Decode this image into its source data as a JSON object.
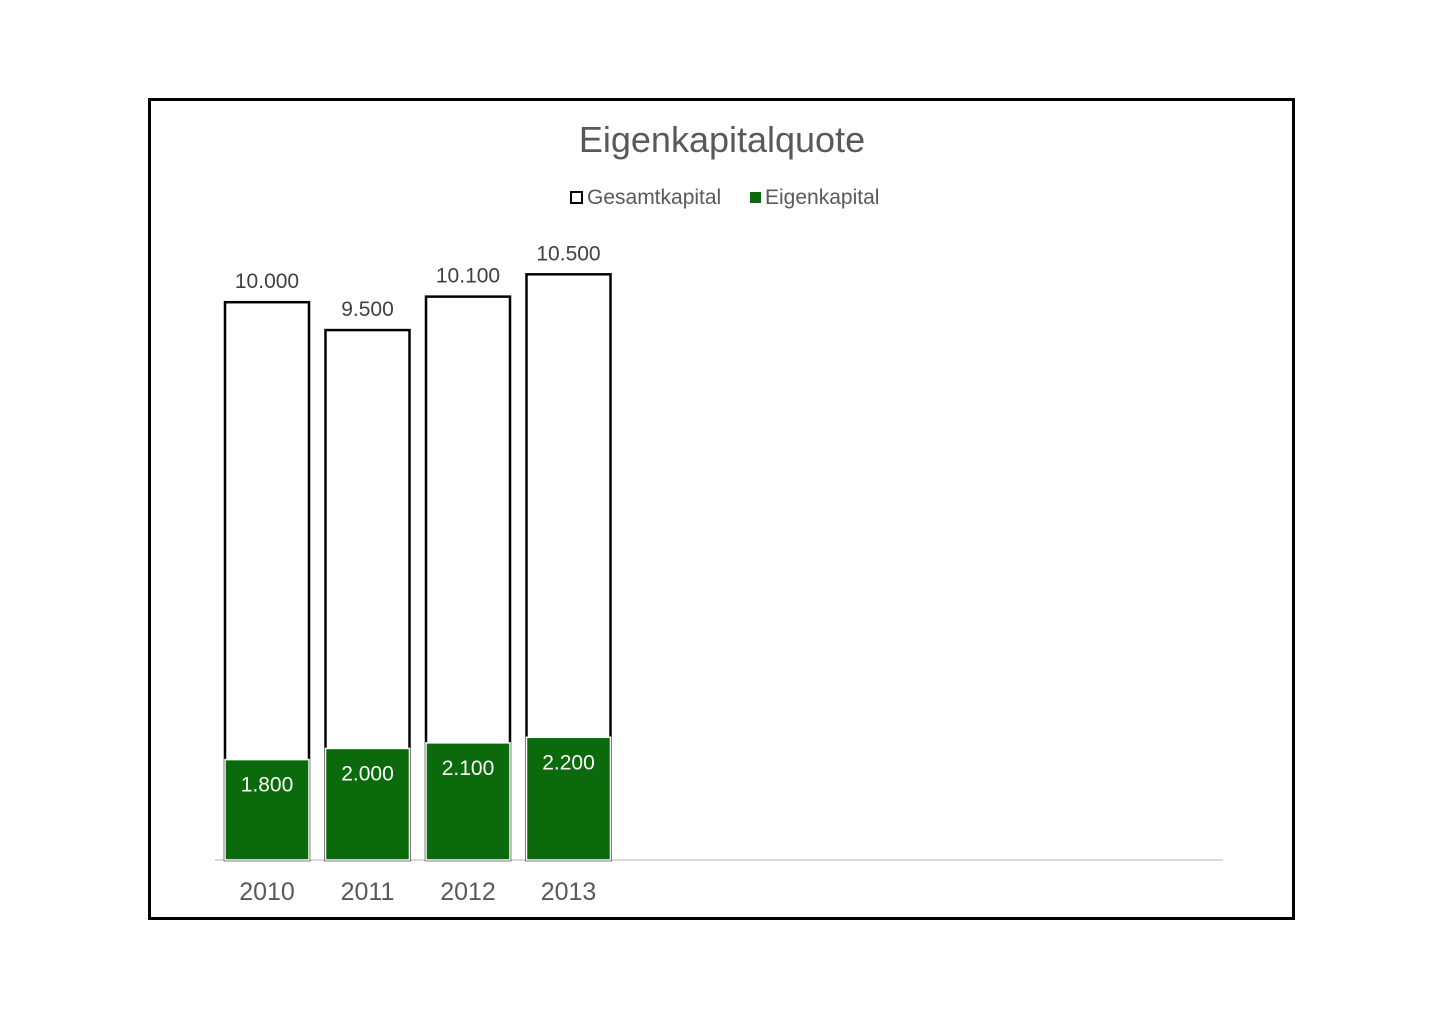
{
  "chart_data": {
    "type": "bar",
    "title": "Eigenkapitalquote",
    "categories": [
      "2010",
      "2011",
      "2012",
      "2013"
    ],
    "series": [
      {
        "name": "Gesamtkapital",
        "values": [
          10000,
          9500,
          10100,
          10500
        ],
        "labels": [
          "10.000",
          "9.500",
          "10.100",
          "10.500"
        ],
        "color": "#ffffff",
        "stroke": "#000000"
      },
      {
        "name": "Eigenkapital",
        "values": [
          1800,
          2000,
          2100,
          2200
        ],
        "labels": [
          "1.800",
          "2.000",
          "2.100",
          "2.200"
        ],
        "color": "#0b6a0b",
        "stroke": "#ffffff"
      }
    ],
    "overlap": true,
    "legend": "top",
    "grid": false,
    "xlabel": "",
    "ylabel": ""
  }
}
